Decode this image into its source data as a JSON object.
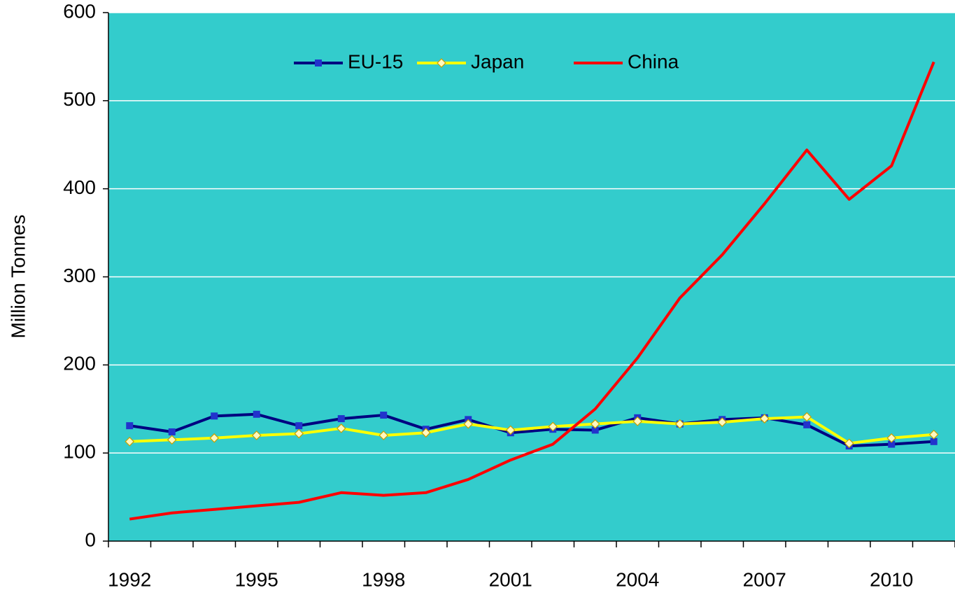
{
  "chart_data": {
    "type": "line",
    "y_label": "Million Tonnes",
    "categories": [
      "1992",
      null,
      null,
      "1995",
      null,
      null,
      "1998",
      null,
      null,
      "2001",
      null,
      null,
      "2004",
      null,
      null,
      "2007",
      null,
      null,
      "2010",
      null
    ],
    "series": [
      {
        "name": "EU-15",
        "color": "#000080",
        "marker": "square",
        "values": [
          131,
          124,
          142,
          144,
          131,
          139,
          143,
          127,
          138,
          123,
          127,
          126,
          140,
          133,
          138,
          140,
          132,
          108,
          110,
          113
        ]
      },
      {
        "name": "Japan",
        "color": "#ffff00",
        "marker": "diamond",
        "values": [
          113,
          115,
          117,
          120,
          122,
          128,
          120,
          123,
          133,
          126,
          130,
          133,
          136,
          133,
          135,
          139,
          141,
          111,
          117,
          121
        ]
      },
      {
        "name": "China",
        "color": "#ff0000",
        "marker": null,
        "values": [
          25,
          32,
          36,
          40,
          44,
          55,
          52,
          55,
          70,
          92,
          110,
          150,
          208,
          276,
          325,
          383,
          444,
          388,
          426,
          544
        ]
      }
    ],
    "ylim": [
      0,
      600
    ],
    "yticks": [
      0,
      100,
      200,
      300,
      400,
      500,
      600
    ],
    "grid": true,
    "legend": "top",
    "background": "#33cccc"
  }
}
